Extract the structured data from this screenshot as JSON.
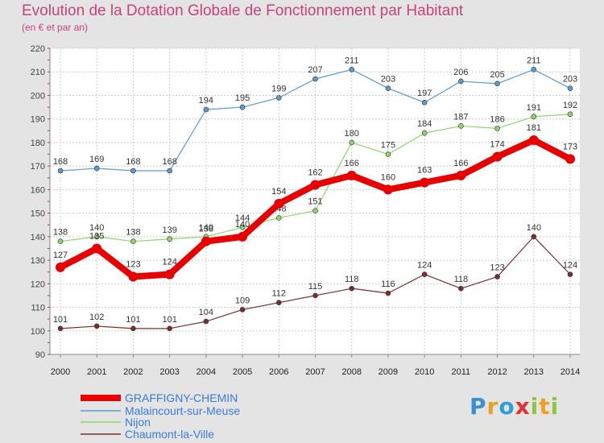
{
  "chart_data": {
    "type": "line",
    "title": "Evolution de la Dotation Globale de Fonctionnement par Habitant",
    "subtitle": "(en € et par an)",
    "xlabel": "",
    "ylabel": "",
    "x": [
      "2000",
      "2001",
      "2002",
      "2003",
      "2004",
      "2005",
      "2006",
      "2007",
      "2008",
      "2009",
      "2010",
      "2011",
      "2012",
      "2013",
      "2014"
    ],
    "ylim": [
      90,
      220
    ],
    "yticks": [
      90,
      100,
      110,
      120,
      130,
      140,
      150,
      160,
      170,
      180,
      190,
      200,
      210,
      220
    ],
    "grid": true,
    "legend_position": "bottom-left",
    "series": [
      {
        "name": "GRAFFIGNY-CHEMIN",
        "color": "#e80000",
        "emphasis": true,
        "values": [
          127,
          135,
          123,
          124,
          138,
          140,
          154,
          162,
          166,
          160,
          163,
          166,
          174,
          181,
          173
        ]
      },
      {
        "name": "Malaincourt-sur-Meuse",
        "color": "#5b9bd0",
        "values": [
          168,
          169,
          168,
          168,
          194,
          195,
          199,
          207,
          211,
          203,
          197,
          206,
          205,
          211,
          203
        ]
      },
      {
        "name": "Nijon",
        "color": "#8ed66a",
        "values": [
          138,
          140,
          138,
          139,
          140,
          144,
          148,
          151,
          180,
          175,
          184,
          187,
          186,
          191,
          192
        ]
      },
      {
        "name": "Chaumont-la-Ville",
        "color": "#7a2e2e",
        "values": [
          101,
          102,
          101,
          101,
          104,
          109,
          112,
          115,
          118,
          116,
          124,
          118,
          123,
          140,
          124
        ]
      }
    ]
  },
  "logo": {
    "p": "P",
    "r": "r",
    "o": "o",
    "x": "x",
    "i": "i",
    "t": "t",
    "i2": "i"
  }
}
